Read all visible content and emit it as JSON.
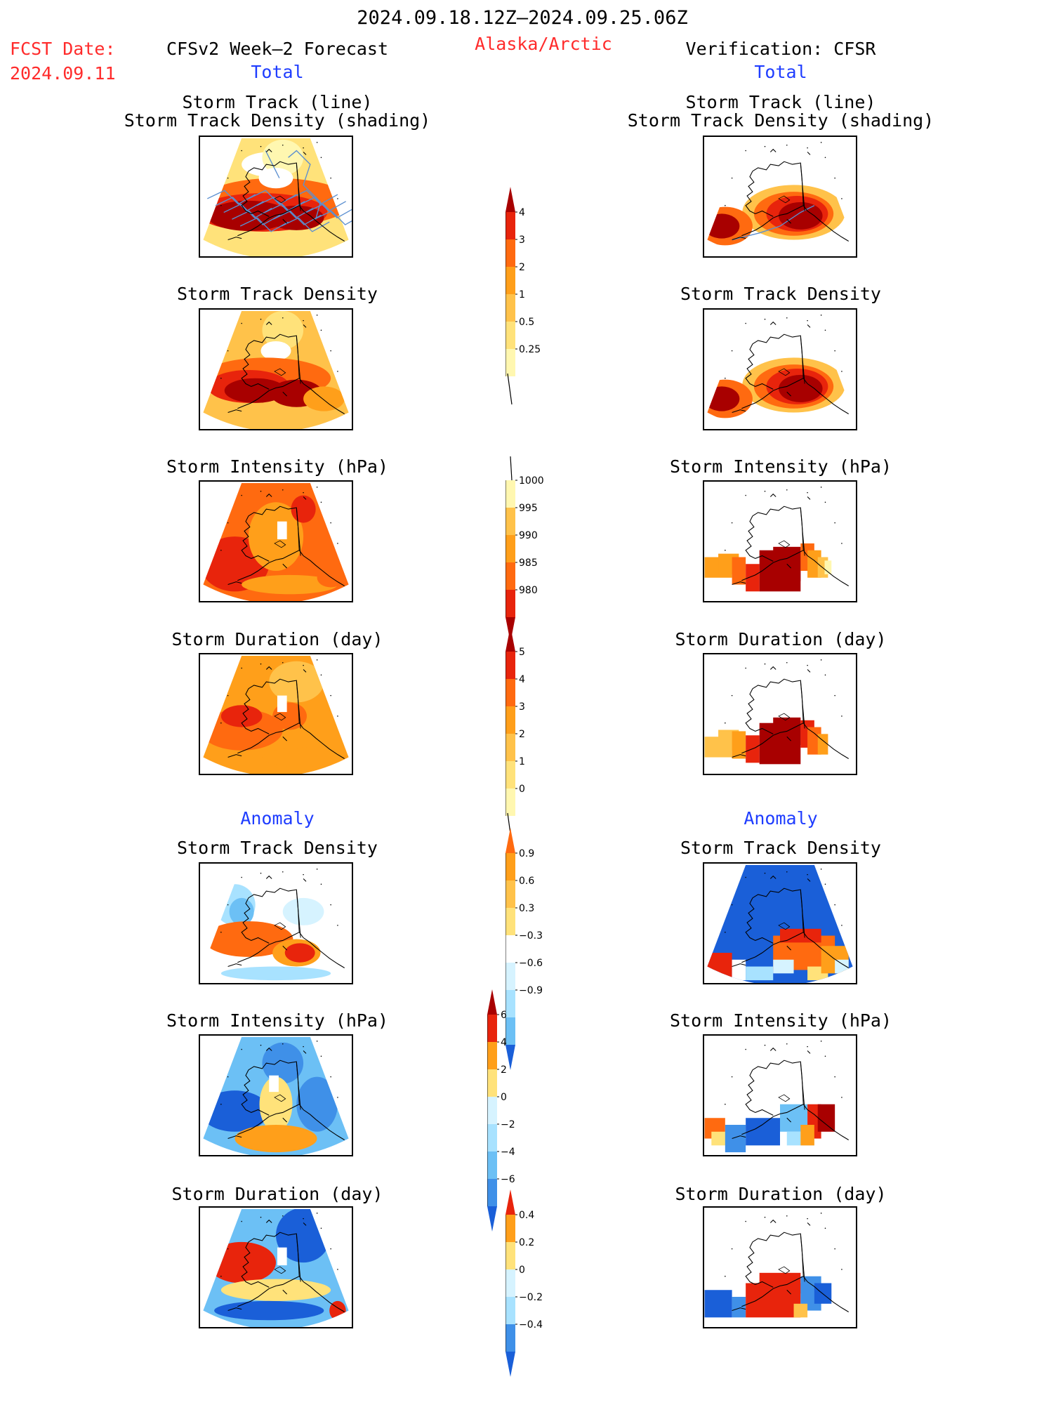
{
  "header": {
    "period": "2024.09.18.12Z–2024.09.25.06Z",
    "fcst_label": "FCST Date:",
    "fcst_date": "2024.09.11",
    "forecast_title": "CFSv2 Week–2 Forecast",
    "region": "Alaska/Arctic",
    "verification_title": "Verification: CFSR",
    "total_left": "Total",
    "total_right": "Total",
    "anomaly_left": "Anomaly",
    "anomaly_right": "Anomaly"
  },
  "panel_titles": {
    "track_line": "Storm Track (line)",
    "track_shading": "Storm Track Density (shading)",
    "density": "Storm Track Density",
    "intensity": "Storm Intensity (hPa)",
    "duration": "Storm Duration (day)"
  },
  "colorbars": {
    "density_total": [
      "4",
      "3",
      "2",
      "1",
      "0.5",
      "0.25"
    ],
    "intensity_total": [
      "1000",
      "995",
      "990",
      "985",
      "980"
    ],
    "duration_total": [
      "5",
      "4",
      "3",
      "2",
      "1",
      "0"
    ],
    "density_anom": [
      "0.9",
      "0.6",
      "0.3",
      "−0.3",
      "−0.6",
      "−0.9"
    ],
    "intensity_anom": [
      "6",
      "4",
      "2",
      "0",
      "−2",
      "−4",
      "−6"
    ],
    "duration_anom": [
      "0.4",
      "0.2",
      "0",
      "−0.2",
      "−0.4"
    ]
  },
  "colors": {
    "warm": [
      "#fff7b0",
      "#ffe27a",
      "#ffc24a",
      "#ff9f1a",
      "#ff6a10",
      "#e8240c",
      "#a80000"
    ],
    "cool": [
      "#d6f3ff",
      "#a8e2ff",
      "#6cc0f5",
      "#3f90e8",
      "#1a5fd8"
    ],
    "track_line": "#5b8fd0"
  }
}
